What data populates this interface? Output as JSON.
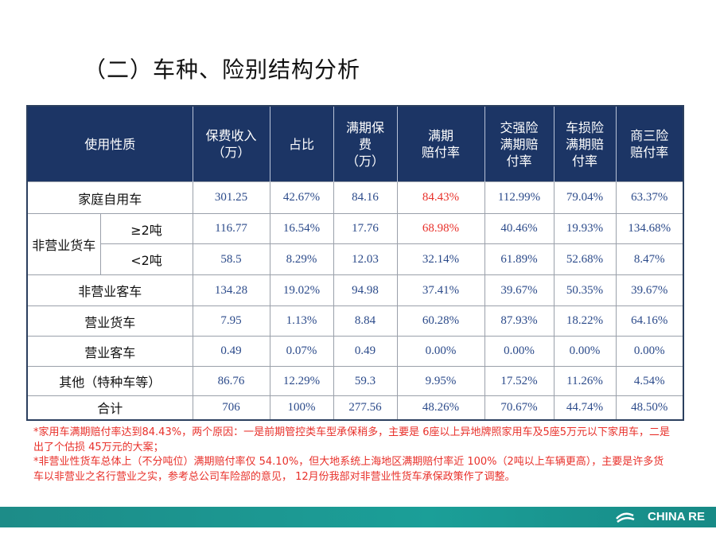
{
  "title": "（二）车种、险别结构分析",
  "table": {
    "columns": [
      "使用性质",
      "保费收入\n（万）",
      "占比",
      "满期保\n费\n（万）",
      "满期\n赔付率",
      "交强险\n满期赔\n付率",
      "车损险\n满期赔\n付率",
      "商三险\n赔付率"
    ],
    "rows": [
      {
        "label": "家庭自用车",
        "cells": [
          "301.25",
          "42.67%",
          "84.16",
          {
            "text": "84.43%",
            "color": "#e8302a"
          },
          "112.99%",
          "79.04%",
          "63.37%"
        ]
      },
      {
        "group": "非营业货车",
        "label": "≥2吨",
        "cells": [
          "116.77",
          "16.54%",
          "17.76",
          {
            "text": "68.98%",
            "color": "#e8302a"
          },
          "40.46%",
          "19.93%",
          "134.68%"
        ]
      },
      {
        "label": "<2吨",
        "cells": [
          "58.5",
          "8.29%",
          "12.03",
          "32.14%",
          "61.89%",
          "52.68%",
          "8.47%"
        ]
      },
      {
        "label": "非营业客车",
        "cells": [
          "134.28",
          "19.02%",
          "94.98",
          "37.41%",
          "39.67%",
          "50.35%",
          "39.67%"
        ]
      },
      {
        "label": "营业货车",
        "cells": [
          "7.95",
          "1.13%",
          "8.84",
          "60.28%",
          "87.93%",
          "18.22%",
          "64.16%"
        ]
      },
      {
        "label": "营业客车",
        "cells": [
          "0.49",
          "0.07%",
          "0.49",
          "0.00%",
          "0.00%",
          "0.00%",
          "0.00%"
        ]
      },
      {
        "label": "其他（特种车等）",
        "cells": [
          "86.76",
          "12.29%",
          "59.3",
          "9.95%",
          "17.52%",
          "11.26%",
          "4.54%"
        ]
      },
      {
        "label": "合计",
        "cells": [
          "706",
          "100%",
          "277.56",
          "48.26%",
          "70.67%",
          "44.74%",
          "48.50%"
        ]
      }
    ]
  },
  "notes": [
    "*家用车满期赔付率达到84.43%，两个原因：一是前期管控类车型承保稍多，主要是 6座以上异地牌照家用车及5座5万元以下家用车，二是出了个估损 45万元的大案；",
    "*非营业性货车总体上（不分吨位）满期赔付率仅 54.10%，但大地系统上海地区满期赔付率近 100%（2吨以上车辆更高），主要是许多货车以非营业之名行营业之实，参考总公司车险部的意见，  12月份我部对非营业性货车承保政策作了调整。"
  ],
  "footer": {
    "logo": "CHINA RE"
  }
}
